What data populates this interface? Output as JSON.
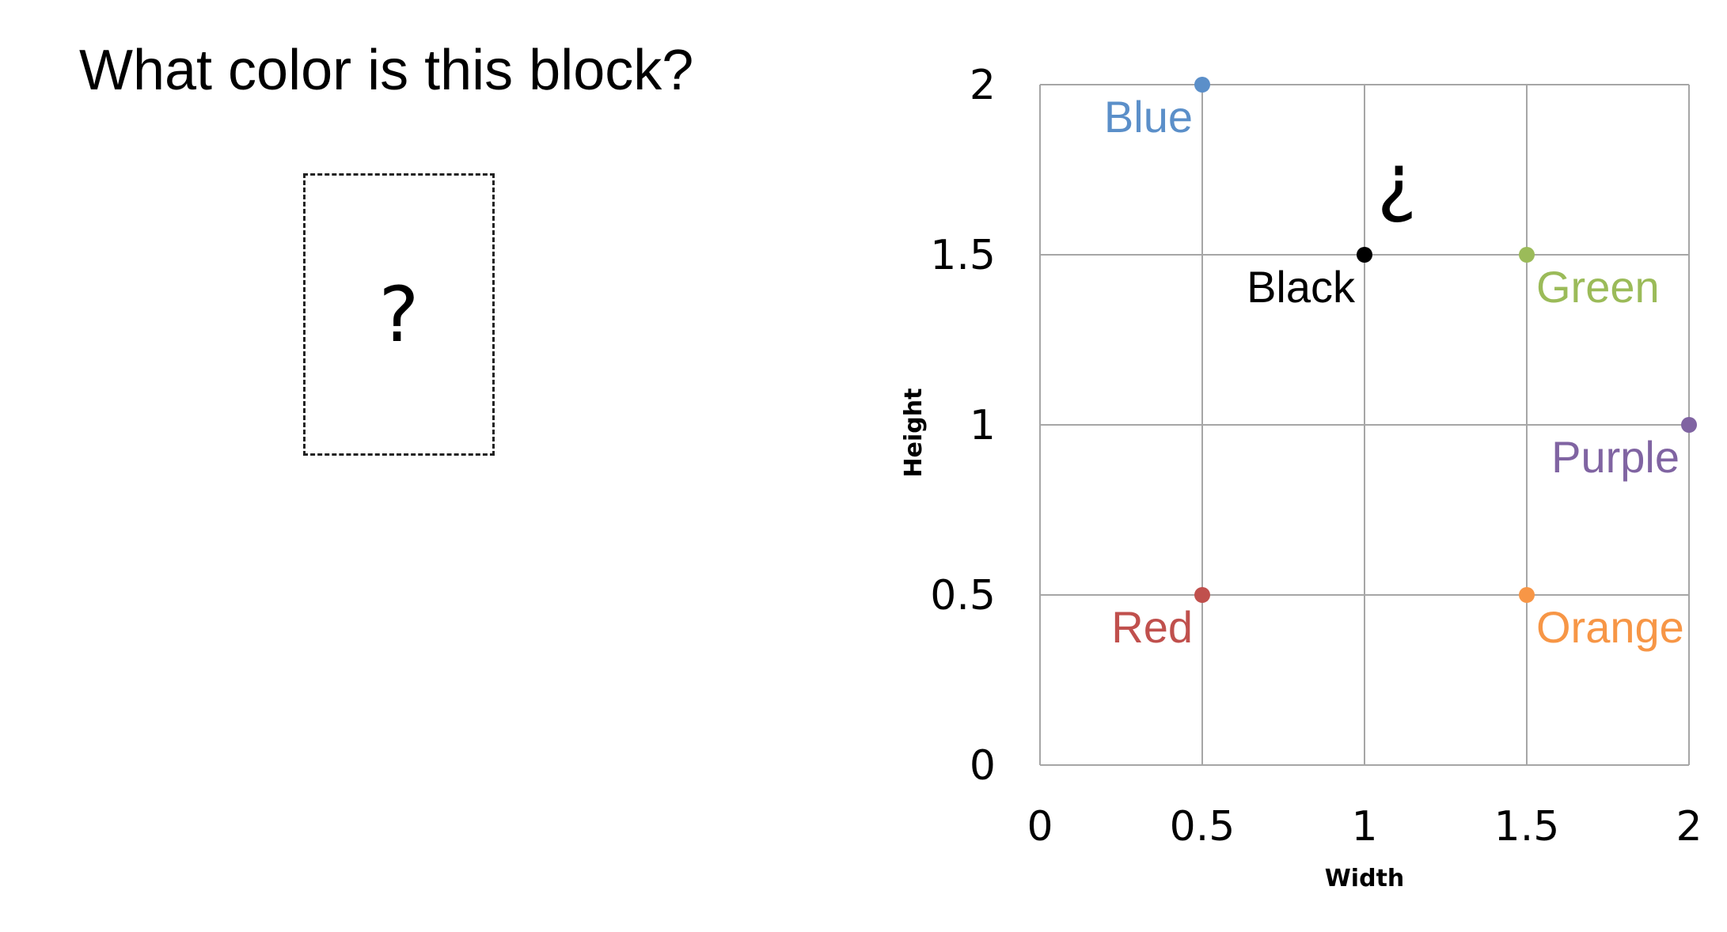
{
  "question": {
    "title": "What color is this block?",
    "block_mark": "?"
  },
  "chart_data": {
    "type": "scatter",
    "xlabel": "Width",
    "ylabel": "Height",
    "xlim": [
      0,
      2
    ],
    "ylim": [
      0,
      2
    ],
    "x_ticks": [
      "0",
      "0.5",
      "1",
      "1.5",
      "2"
    ],
    "y_ticks": [
      "0",
      "0.5",
      "1",
      "1.5",
      "2"
    ],
    "grid": true,
    "points": [
      {
        "label": "Blue",
        "x": 0.5,
        "y": 2.0,
        "color": "#5b8fc9"
      },
      {
        "label": "Black",
        "x": 1.0,
        "y": 1.5,
        "color": "#000000"
      },
      {
        "label": "Green",
        "x": 1.5,
        "y": 1.5,
        "color": "#9bbb59"
      },
      {
        "label": "Purple",
        "x": 2.0,
        "y": 1.0,
        "color": "#8064a2"
      },
      {
        "label": "Red",
        "x": 0.5,
        "y": 0.5,
        "color": "#c0504d"
      },
      {
        "label": "Orange",
        "x": 1.5,
        "y": 0.5,
        "color": "#f79646"
      }
    ],
    "annotation": {
      "text": "?",
      "x": 1.1,
      "y": 1.7,
      "rotated": true
    }
  }
}
